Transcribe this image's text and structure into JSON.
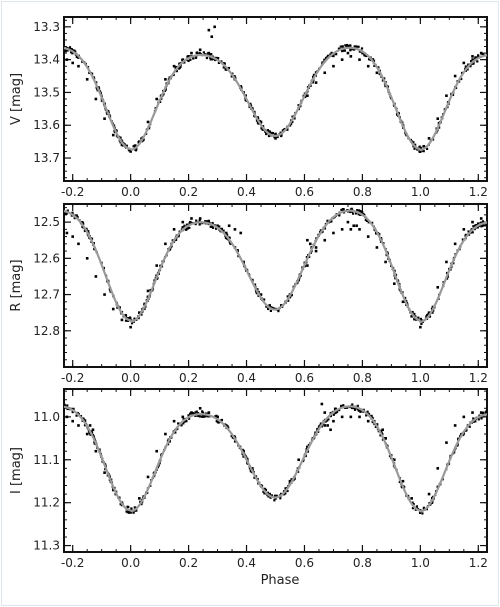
{
  "chart_data": [
    {
      "type": "scatter",
      "ylabel": "V  [mag]",
      "xlim": [
        -0.23,
        1.23
      ],
      "ylim": [
        13.27,
        13.77
      ],
      "y_inverted": true,
      "x_ticks": [
        "-0.2",
        "0.0",
        "0.2",
        "0.4",
        "0.6",
        "0.8",
        "1.0",
        "1.2"
      ],
      "x_tick_values": [
        -0.2,
        0.0,
        0.2,
        0.4,
        0.6,
        0.8,
        1.0,
        1.2
      ],
      "y_ticks": [
        "13.3",
        "13.4",
        "13.5",
        "13.6",
        "13.7"
      ],
      "y_tick_values": [
        13.3,
        13.4,
        13.5,
        13.6,
        13.7
      ],
      "model": {
        "base": 13.375,
        "primary_depth": 0.3,
        "secondary_depth": 0.26,
        "primary_width": 0.085,
        "secondary_width": 0.093,
        "max1_offset": 0.0,
        "max2_offset": 0.022
      },
      "series": [
        {
          "role": "observations",
          "points": [
            [
              -0.22,
              13.4
            ],
            [
              -0.2,
              13.41
            ],
            [
              -0.18,
              13.42
            ],
            [
              -0.15,
              13.46
            ],
            [
              -0.12,
              13.52
            ],
            [
              -0.09,
              13.58
            ],
            [
              -0.06,
              13.63
            ],
            [
              -0.03,
              13.66
            ],
            [
              0.0,
              13.68
            ],
            [
              0.03,
              13.65
            ],
            [
              0.06,
              13.59
            ],
            [
              0.09,
              13.52
            ],
            [
              0.12,
              13.46
            ],
            [
              0.15,
              13.42
            ],
            [
              0.18,
              13.4
            ],
            [
              0.21,
              13.38
            ],
            [
              0.24,
              13.37
            ],
            [
              0.27,
              13.38
            ],
            [
              0.3,
              13.4
            ],
            [
              0.33,
              13.43
            ],
            [
              0.36,
              13.46
            ],
            [
              0.39,
              13.5
            ],
            [
              0.42,
              13.55
            ],
            [
              0.45,
              13.59
            ],
            [
              0.48,
              13.62
            ],
            [
              0.5,
              13.64
            ],
            [
              0.52,
              13.63
            ],
            [
              0.55,
              13.6
            ],
            [
              0.58,
              13.55
            ],
            [
              0.61,
              13.51
            ],
            [
              0.64,
              13.47
            ],
            [
              0.67,
              13.44
            ],
            [
              0.7,
              13.42
            ],
            [
              0.73,
              13.4
            ],
            [
              0.76,
              13.39
            ],
            [
              0.79,
              13.4
            ],
            [
              0.82,
              13.42
            ],
            [
              0.85,
              13.44
            ],
            [
              0.88,
              13.48
            ],
            [
              0.91,
              13.54
            ],
            [
              0.94,
              13.6
            ],
            [
              0.97,
              13.65
            ],
            [
              1.0,
              13.68
            ],
            [
              1.03,
              13.64
            ],
            [
              1.06,
              13.58
            ],
            [
              1.09,
              13.51
            ],
            [
              1.12,
              13.45
            ],
            [
              1.15,
              13.41
            ],
            [
              1.18,
              13.39
            ],
            [
              1.21,
              13.38
            ],
            [
              0.27,
              13.31
            ],
            [
              0.28,
              13.33
            ],
            [
              0.29,
              13.3
            ],
            [
              0.73,
              13.37
            ],
            [
              0.75,
              13.38
            ]
          ]
        },
        {
          "role": "model_curve"
        }
      ]
    },
    {
      "type": "scatter",
      "ylabel": "R  [mag]",
      "xlim": [
        -0.23,
        1.23
      ],
      "ylim": [
        12.45,
        12.9
      ],
      "y_inverted": true,
      "x_ticks": [
        "-0.2",
        "0.0",
        "0.2",
        "0.4",
        "0.6",
        "0.8",
        "1.0",
        "1.2"
      ],
      "x_tick_values": [
        -0.2,
        0.0,
        0.2,
        0.4,
        0.6,
        0.8,
        1.0,
        1.2
      ],
      "y_ticks": [
        "12.5",
        "12.6",
        "12.7",
        "12.8"
      ],
      "y_tick_values": [
        12.5,
        12.6,
        12.7,
        12.8
      ],
      "model": {
        "base": 12.49,
        "primary_depth": 0.285,
        "secondary_depth": 0.255,
        "primary_width": 0.085,
        "secondary_width": 0.093,
        "max1_offset": 0.0,
        "max2_offset": 0.032
      },
      "series": [
        {
          "role": "observations",
          "points": [
            [
              -0.22,
              12.53
            ],
            [
              -0.2,
              12.54
            ],
            [
              -0.18,
              12.56
            ],
            [
              -0.15,
              12.6
            ],
            [
              -0.12,
              12.65
            ],
            [
              -0.09,
              12.7
            ],
            [
              -0.06,
              12.74
            ],
            [
              -0.03,
              12.77
            ],
            [
              0.0,
              12.79
            ],
            [
              0.03,
              12.75
            ],
            [
              0.06,
              12.69
            ],
            [
              0.09,
              12.62
            ],
            [
              0.12,
              12.56
            ],
            [
              0.15,
              12.52
            ],
            [
              0.18,
              12.5
            ],
            [
              0.21,
              12.49
            ],
            [
              0.24,
              12.49
            ],
            [
              0.27,
              12.5
            ],
            [
              0.3,
              12.51
            ],
            [
              0.33,
              12.53
            ],
            [
              0.36,
              12.57
            ],
            [
              0.39,
              12.61
            ],
            [
              0.42,
              12.66
            ],
            [
              0.45,
              12.7
            ],
            [
              0.48,
              12.73
            ],
            [
              0.5,
              12.74
            ],
            [
              0.52,
              12.73
            ],
            [
              0.55,
              12.7
            ],
            [
              0.58,
              12.66
            ],
            [
              0.61,
              12.62
            ],
            [
              0.64,
              12.58
            ],
            [
              0.67,
              12.55
            ],
            [
              0.7,
              12.53
            ],
            [
              0.73,
              12.52
            ],
            [
              0.76,
              12.52
            ],
            [
              0.79,
              12.52
            ],
            [
              0.82,
              12.54
            ],
            [
              0.85,
              12.57
            ],
            [
              0.88,
              12.61
            ],
            [
              0.91,
              12.67
            ],
            [
              0.94,
              12.72
            ],
            [
              0.97,
              12.76
            ],
            [
              1.0,
              12.79
            ],
            [
              1.03,
              12.75
            ],
            [
              1.06,
              12.68
            ],
            [
              1.09,
              12.61
            ],
            [
              1.12,
              12.56
            ],
            [
              1.15,
              12.52
            ],
            [
              1.18,
              12.5
            ],
            [
              1.21,
              12.49
            ],
            [
              0.34,
              12.51
            ],
            [
              0.36,
              12.52
            ],
            [
              0.38,
              12.53
            ],
            [
              0.61,
              12.55
            ],
            [
              0.62,
              12.56
            ],
            [
              0.64,
              12.57
            ],
            [
              0.75,
              12.5
            ],
            [
              0.77,
              12.51
            ],
            [
              0.78,
              12.51
            ]
          ]
        },
        {
          "role": "model_curve"
        }
      ]
    },
    {
      "type": "scatter",
      "ylabel": "I  [mag]",
      "xlabel": "Phase",
      "xlim": [
        -0.23,
        1.23
      ],
      "ylim": [
        10.935,
        11.315
      ],
      "y_inverted": true,
      "x_ticks": [
        "-0.2",
        "0.0",
        "0.2",
        "0.4",
        "0.6",
        "0.8",
        "1.0",
        "1.2"
      ],
      "x_tick_values": [
        -0.2,
        0.0,
        0.2,
        0.4,
        0.6,
        0.8,
        1.0,
        1.2
      ],
      "y_ticks": [
        "11.0",
        "11.1",
        "11.2",
        "11.3"
      ],
      "y_tick_values": [
        11.0,
        11.1,
        11.2,
        11.3
      ],
      "model": {
        "base": 10.985,
        "primary_depth": 0.235,
        "secondary_depth": 0.205,
        "primary_width": 0.085,
        "secondary_width": 0.093,
        "max1_offset": 0.0,
        "max2_offset": 0.018
      },
      "series": [
        {
          "role": "observations",
          "points": [
            [
              -0.22,
              11.0
            ],
            [
              -0.2,
              11.01
            ],
            [
              -0.18,
              11.02
            ],
            [
              -0.15,
              11.04
            ],
            [
              -0.12,
              11.08
            ],
            [
              -0.09,
              11.13
            ],
            [
              -0.06,
              11.17
            ],
            [
              -0.03,
              11.2
            ],
            [
              0.0,
              11.22
            ],
            [
              0.03,
              11.19
            ],
            [
              0.06,
              11.14
            ],
            [
              0.09,
              11.08
            ],
            [
              0.12,
              11.04
            ],
            [
              0.15,
              11.01
            ],
            [
              0.18,
              11.0
            ],
            [
              0.21,
              10.99
            ],
            [
              0.24,
              10.98
            ],
            [
              0.27,
              10.99
            ],
            [
              0.3,
              11.0
            ],
            [
              0.33,
              11.02
            ],
            [
              0.36,
              11.05
            ],
            [
              0.39,
              11.08
            ],
            [
              0.42,
              11.12
            ],
            [
              0.45,
              11.16
            ],
            [
              0.48,
              11.18
            ],
            [
              0.5,
              11.19
            ],
            [
              0.52,
              11.18
            ],
            [
              0.55,
              11.15
            ],
            [
              0.58,
              11.1
            ],
            [
              0.61,
              11.07
            ],
            [
              0.64,
              11.04
            ],
            [
              0.67,
              11.02
            ],
            [
              0.7,
              11.01
            ],
            [
              0.73,
              11.0
            ],
            [
              0.76,
              11.0
            ],
            [
              0.79,
              11.0
            ],
            [
              0.82,
              11.01
            ],
            [
              0.85,
              11.02
            ],
            [
              0.88,
              11.05
            ],
            [
              0.91,
              11.1
            ],
            [
              0.94,
              11.15
            ],
            [
              0.97,
              11.19
            ],
            [
              1.0,
              11.22
            ],
            [
              1.03,
              11.18
            ],
            [
              1.06,
              11.12
            ],
            [
              1.09,
              11.06
            ],
            [
              1.12,
              11.02
            ],
            [
              1.15,
              11.0
            ],
            [
              1.18,
              10.99
            ],
            [
              1.21,
              10.99
            ],
            [
              -0.14,
              11.02
            ],
            [
              -0.13,
              11.03
            ],
            [
              0.66,
              10.97
            ],
            [
              0.67,
              10.99
            ],
            [
              0.68,
              11.02
            ],
            [
              0.69,
              11.03
            ],
            [
              0.87,
              11.03
            ],
            [
              0.88,
              11.05
            ]
          ]
        },
        {
          "role": "model_curve"
        }
      ]
    }
  ]
}
